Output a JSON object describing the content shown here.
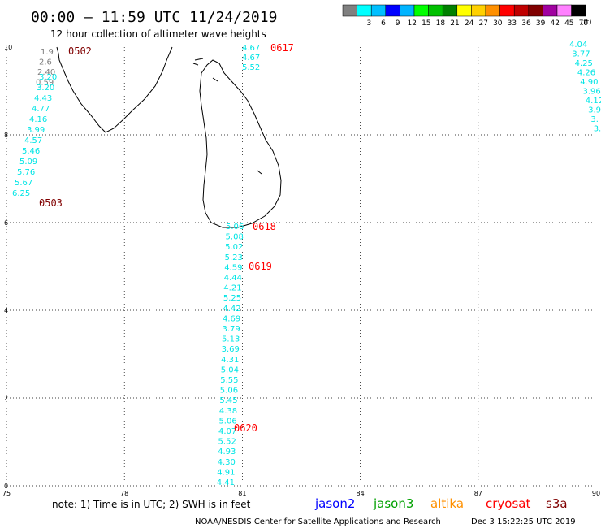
{
  "header": {
    "title": "00:00 – 11:59 UTC 11/24/2019",
    "subtitle": "12 hour collection of altimeter wave heights"
  },
  "legend": {
    "unit": "(ft)",
    "swatches": [
      {
        "color": "#808080",
        "label": ""
      },
      {
        "color": "#00ffff",
        "label": "3"
      },
      {
        "color": "#00bfff",
        "label": "6"
      },
      {
        "color": "#0000ff",
        "label": "9"
      },
      {
        "color": "#00b4ff",
        "label": "12"
      },
      {
        "color": "#00ff00",
        "label": "15"
      },
      {
        "color": "#00c000",
        "label": "18"
      },
      {
        "color": "#008000",
        "label": "21"
      },
      {
        "color": "#ffff00",
        "label": "24"
      },
      {
        "color": "#ffd000",
        "label": "27"
      },
      {
        "color": "#ff9000",
        "label": "30"
      },
      {
        "color": "#ff0000",
        "label": "33"
      },
      {
        "color": "#c00000",
        "label": "36"
      },
      {
        "color": "#800000",
        "label": "39"
      },
      {
        "color": "#a000a0",
        "label": "42"
      },
      {
        "color": "#ff80ff",
        "label": "45"
      },
      {
        "color": "#000000",
        "label": "70"
      }
    ]
  },
  "axes": {
    "x_ticks": [
      "75",
      "78",
      "81",
      "84",
      "87",
      "90"
    ],
    "y_ticks": [
      "10",
      "8",
      "6",
      "4",
      "2",
      "0"
    ]
  },
  "track_labels": [
    "0502",
    "0503",
    "0617",
    "0618",
    "0619",
    "0620"
  ],
  "tracks": [
    {
      "color": "#808080",
      "values": [
        "1.9",
        "2.6",
        "2.40",
        "0.59"
      ]
    },
    {
      "color": "#00e5e5",
      "values": [
        "3.20",
        "3.20",
        "4.43",
        "4.77",
        "4.16",
        "3.99",
        "4.57",
        "5.46",
        "5.09",
        "5.76",
        "5.67",
        "6.25"
      ]
    },
    {
      "color": "#00e5e5",
      "values": [
        "4.67",
        "4.67",
        "5.52"
      ]
    },
    {
      "color": "#00e5e5",
      "values": [
        "5.06",
        "5.08",
        "5.02",
        "5.23",
        "4.59",
        "4.44",
        "4.21",
        "5.25",
        "4.42",
        "4.69",
        "3.79",
        "5.13",
        "3.69",
        "4.31",
        "5.04",
        "5.55",
        "5.06",
        "5.45",
        "4.38",
        "5.06",
        "4.07",
        "5.52",
        "4.93",
        "4.30",
        "4.91",
        "4.41"
      ]
    },
    {
      "color": "#00e5e5",
      "values": [
        "4.04",
        "3.77",
        "4.25",
        "4.26",
        "4.90",
        "3.96",
        "4.12",
        "3.9",
        "3.",
        "3."
      ]
    }
  ],
  "satellites": [
    {
      "name": "jason2",
      "color": "#0000ff"
    },
    {
      "name": "jason3",
      "color": "#00a000"
    },
    {
      "name": "altika",
      "color": "#ff9000"
    },
    {
      "name": "cryosat",
      "color": "#ff0000"
    },
    {
      "name": "s3a",
      "color": "#800000"
    }
  ],
  "footer": {
    "note": "note: 1) Time is in UTC; 2) SWH is in feet",
    "credit": "NOAA/NESDIS Center for Satellite Applications and Research",
    "timestamp": "Dec  3 15:22:25 UTC 2019"
  }
}
